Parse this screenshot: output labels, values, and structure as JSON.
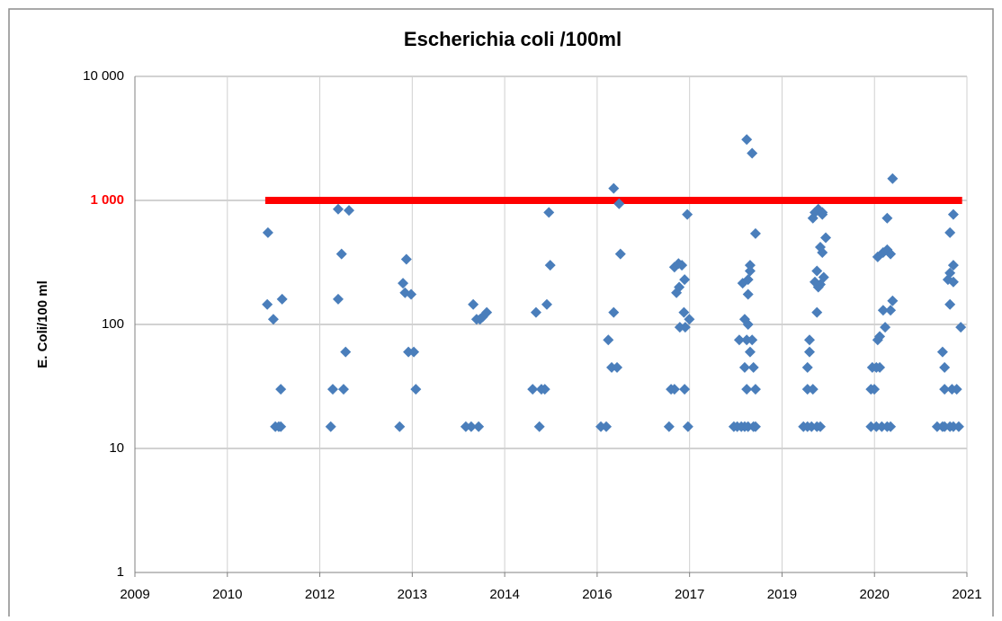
{
  "chart_data": {
    "type": "scatter",
    "title": "Escherichia coli /100ml",
    "y_label": "E. Coli/100 ml",
    "log_y": true,
    "grid": true,
    "ylim": [
      1,
      10000
    ],
    "yticks": [
      1,
      10,
      100,
      {
        "value": 1000,
        "label": "1 000"
      },
      {
        "value": 10000,
        "label": "10 000"
      }
    ],
    "highlight_tick_color": "#ff0000",
    "xlim": [
      2009.45,
      2021.771
    ],
    "xticks": [
      {
        "value": 2009.45,
        "label": "2009"
      },
      {
        "value": 2010.819,
        "label": "2010"
      },
      {
        "value": 2012.188,
        "label": "2012"
      },
      {
        "value": 2013.557,
        "label": "2013"
      },
      {
        "value": 2014.926,
        "label": "2014"
      },
      {
        "value": 2016.295,
        "label": "2016"
      },
      {
        "value": 2017.664,
        "label": "2017"
      },
      {
        "value": 2019.033,
        "label": "2019"
      },
      {
        "value": 2020.402,
        "label": "2020"
      },
      {
        "value": 2021.771,
        "label": "2021"
      }
    ],
    "series": [
      {
        "type": "scatter",
        "color": "#4a7ebb",
        "x": [
          2011.42,
          2011.41,
          2011.5,
          2011.53,
          2011.58,
          2011.61,
          2011.63,
          2011.61,
          2012.35,
          2012.38,
          2012.46,
          2012.46,
          2012.51,
          2012.54,
          2012.62,
          2012.57,
          2013.37,
          2013.42,
          2013.47,
          2013.45,
          2013.54,
          2013.5,
          2013.58,
          2013.61,
          2014.35,
          2014.43,
          2014.54,
          2014.46,
          2014.51,
          2014.56,
          2014.6,
          2014.66,
          2015.34,
          2015.39,
          2015.44,
          2015.47,
          2015.52,
          2015.55,
          2015.58,
          2015.6,
          2016.35,
          2016.43,
          2016.46,
          2016.54,
          2016.54,
          2016.51,
          2016.59,
          2016.62,
          2016.64,
          2017.36,
          2017.39,
          2017.44,
          2017.44,
          2017.5,
          2017.47,
          2017.51,
          2017.55,
          2017.52,
          2017.58,
          2017.59,
          2017.6,
          2017.59,
          2017.63,
          2017.66,
          2017.64,
          2018.32,
          2018.37,
          2018.43,
          2018.48,
          2018.53,
          2018.61,
          2018.4,
          2018.45,
          2018.51,
          2018.48,
          2018.51,
          2018.53,
          2018.48,
          2018.51,
          2018.53,
          2018.56,
          2018.56,
          2018.53,
          2018.59,
          2018.56,
          2018.64,
          2018.61,
          2018.59,
          2018.64,
          2018.64,
          2019.35,
          2019.41,
          2019.47,
          2019.55,
          2019.6,
          2019.41,
          2019.49,
          2019.44,
          2019.44,
          2019.41,
          2019.49,
          2019.52,
          2019.57,
          2019.63,
          2019.52,
          2019.55,
          2019.57,
          2019.6,
          2019.55,
          2019.6,
          2019.63,
          2019.65,
          2019.68,
          2019.63,
          2020.35,
          2020.43,
          2020.51,
          2020.59,
          2020.64,
          2020.35,
          2020.4,
          2020.37,
          2020.43,
          2020.48,
          2020.45,
          2020.48,
          2020.45,
          2020.53,
          2020.59,
          2020.53,
          2020.56,
          2020.59,
          2020.64,
          2020.64,
          2020.67,
          2020.67,
          2021.33,
          2021.41,
          2021.44,
          2021.52,
          2021.57,
          2021.65,
          2021.41,
          2021.44,
          2021.44,
          2021.55,
          2021.62,
          2021.49,
          2021.52,
          2021.52,
          2021.52,
          2021.57,
          2021.57,
          2021.57,
          2021.68
        ],
        "values": [
          550,
          145,
          110,
          15,
          15,
          30,
          160,
          15,
          15,
          30,
          850,
          160,
          370,
          30,
          830,
          60,
          15,
          215,
          335,
          180,
          175,
          60,
          60,
          30,
          15,
          15,
          15,
          145,
          110,
          110,
          115,
          125,
          30,
          125,
          15,
          30,
          30,
          145,
          800,
          300,
          15,
          15,
          75,
          1250,
          125,
          45,
          45,
          940,
          370,
          15,
          30,
          30,
          290,
          310,
          180,
          200,
          300,
          95,
          125,
          230,
          95,
          30,
          770,
          110,
          15,
          15,
          15,
          15,
          15,
          15,
          15,
          75,
          215,
          75,
          110,
          3100,
          230,
          45,
          30,
          175,
          300,
          270,
          100,
          75,
          60,
          30,
          45,
          2400,
          540,
          15,
          15,
          15,
          15,
          15,
          15,
          30,
          30,
          75,
          60,
          45,
          720,
          800,
          850,
          770,
          220,
          270,
          200,
          210,
          125,
          420,
          380,
          240,
          500,
          800,
          15,
          15,
          15,
          15,
          15,
          30,
          30,
          45,
          45,
          45,
          75,
          80,
          350,
          380,
          400,
          130,
          95,
          720,
          370,
          130,
          155,
          1500,
          15,
          15,
          15,
          15,
          15,
          15,
          60,
          45,
          30,
          30,
          30,
          230,
          260,
          550,
          145,
          220,
          300,
          770,
          95
        ]
      },
      {
        "type": "line",
        "color": "#ff0000",
        "x": [
          2011.38,
          2021.7
        ],
        "values": [
          1000,
          1000
        ]
      }
    ]
  }
}
